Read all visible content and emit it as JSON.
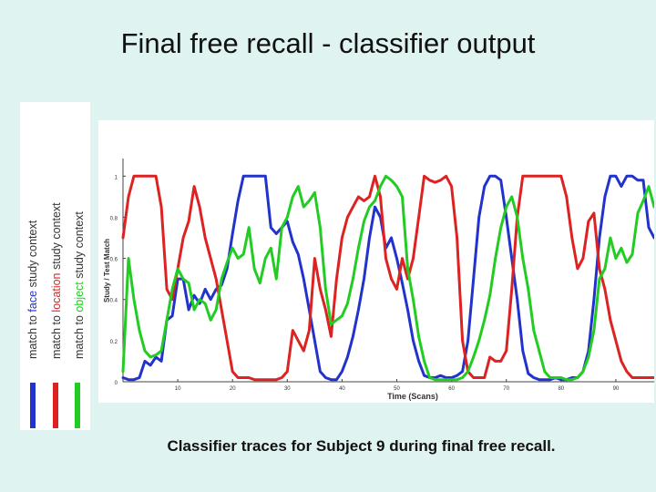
{
  "title": "Final free recall - classifier output",
  "caption": "Classifier traces for Subject 9 during final free recall.",
  "legend": [
    {
      "prefix": "match to ",
      "key": "face",
      "suffix": " study context",
      "color": "#2233cc"
    },
    {
      "prefix": "match to ",
      "key": "location",
      "suffix": " study context",
      "color": "#dd2222"
    },
    {
      "prefix": "match to ",
      "key": "object",
      "suffix": " study context",
      "color": "#22cc22"
    }
  ],
  "chart_data": {
    "type": "line",
    "xlabel": "Time (Scans)",
    "ylabel": "Study / Test Match",
    "xlim": [
      0,
      97
    ],
    "ylim": [
      0,
      1.05
    ],
    "xticks": [
      "10",
      "20",
      "30",
      "40",
      "50",
      "60",
      "70",
      "80",
      "90"
    ],
    "yticks": [
      "1",
      "0.8",
      "0.6",
      "0.4",
      "0.2",
      "0"
    ],
    "grid": false,
    "series": [
      {
        "name": "match to face study context",
        "color": "#2233cc",
        "x": [
          0,
          1,
          2,
          3,
          4,
          5,
          6,
          7,
          8,
          9,
          10,
          11,
          12,
          13,
          14,
          15,
          16,
          17,
          18,
          19,
          20,
          21,
          22,
          23,
          24,
          25,
          26,
          27,
          28,
          29,
          30,
          31,
          32,
          33,
          34,
          35,
          36,
          37,
          38,
          39,
          40,
          41,
          42,
          43,
          44,
          45,
          46,
          47,
          48,
          49,
          50,
          51,
          52,
          53,
          54,
          55,
          56,
          57,
          58,
          59,
          60,
          61,
          62,
          63,
          64,
          65,
          66,
          67,
          68,
          69,
          70,
          71,
          72,
          73,
          74,
          75,
          76,
          77,
          78,
          79,
          80,
          81,
          82,
          83,
          84,
          85,
          86,
          87,
          88,
          89,
          90,
          91,
          92,
          93,
          94,
          95,
          96,
          97
        ],
        "y": [
          0.02,
          0.01,
          0.01,
          0.02,
          0.1,
          0.08,
          0.12,
          0.1,
          0.3,
          0.32,
          0.5,
          0.5,
          0.35,
          0.42,
          0.38,
          0.45,
          0.4,
          0.45,
          0.47,
          0.55,
          0.72,
          0.88,
          1,
          1,
          1,
          1,
          1,
          0.75,
          0.72,
          0.75,
          0.78,
          0.68,
          0.62,
          0.5,
          0.35,
          0.2,
          0.05,
          0.02,
          0.01,
          0.01,
          0.05,
          0.12,
          0.22,
          0.35,
          0.5,
          0.7,
          0.85,
          0.8,
          0.65,
          0.7,
          0.6,
          0.48,
          0.35,
          0.2,
          0.1,
          0.03,
          0.02,
          0.02,
          0.03,
          0.02,
          0.02,
          0.03,
          0.05,
          0.2,
          0.5,
          0.8,
          0.95,
          1,
          1,
          0.98,
          0.8,
          0.6,
          0.4,
          0.15,
          0.04,
          0.02,
          0.01,
          0.01,
          0.01,
          0.02,
          0.01,
          0.01,
          0.02,
          0.02,
          0.05,
          0.15,
          0.4,
          0.7,
          0.9,
          1,
          1,
          0.95,
          1,
          1,
          0.98,
          0.98,
          0.75,
          0.7
        ]
      },
      {
        "name": "match to location study context",
        "color": "#dd2222",
        "x": [
          0,
          1,
          2,
          3,
          4,
          5,
          6,
          7,
          8,
          9,
          10,
          11,
          12,
          13,
          14,
          15,
          16,
          17,
          18,
          19,
          20,
          21,
          22,
          23,
          24,
          25,
          26,
          27,
          28,
          29,
          30,
          31,
          32,
          33,
          34,
          35,
          36,
          37,
          38,
          39,
          40,
          41,
          42,
          43,
          44,
          45,
          46,
          47,
          48,
          49,
          50,
          51,
          52,
          53,
          54,
          55,
          56,
          57,
          58,
          59,
          60,
          61,
          62,
          63,
          64,
          65,
          66,
          67,
          68,
          69,
          70,
          71,
          72,
          73,
          74,
          75,
          76,
          77,
          78,
          79,
          80,
          81,
          82,
          83,
          84,
          85,
          86,
          87,
          88,
          89,
          90,
          91,
          92,
          93,
          94,
          95,
          96,
          97
        ],
        "y": [
          0.7,
          0.9,
          1,
          1,
          1,
          1,
          1,
          0.85,
          0.45,
          0.4,
          0.55,
          0.7,
          0.78,
          0.95,
          0.85,
          0.7,
          0.6,
          0.5,
          0.35,
          0.2,
          0.05,
          0.02,
          0.02,
          0.02,
          0.01,
          0.01,
          0.01,
          0.01,
          0.01,
          0.02,
          0.05,
          0.25,
          0.2,
          0.15,
          0.25,
          0.6,
          0.45,
          0.35,
          0.22,
          0.5,
          0.7,
          0.8,
          0.85,
          0.9,
          0.88,
          0.9,
          1,
          0.9,
          0.6,
          0.5,
          0.45,
          0.6,
          0.5,
          0.6,
          0.8,
          1,
          0.98,
          0.97,
          0.98,
          1,
          0.95,
          0.7,
          0.2,
          0.05,
          0.02,
          0.02,
          0.02,
          0.12,
          0.1,
          0.1,
          0.15,
          0.45,
          0.8,
          1,
          1,
          1,
          1,
          1,
          1,
          1,
          1,
          0.9,
          0.7,
          0.55,
          0.6,
          0.78,
          0.82,
          0.55,
          0.45,
          0.3,
          0.2,
          0.1,
          0.05,
          0.02,
          0.02,
          0.02,
          0.02,
          0.02
        ]
      },
      {
        "name": "match to object study context",
        "color": "#22cc22",
        "x": [
          0,
          1,
          2,
          3,
          4,
          5,
          6,
          7,
          8,
          9,
          10,
          11,
          12,
          13,
          14,
          15,
          16,
          17,
          18,
          19,
          20,
          21,
          22,
          23,
          24,
          25,
          26,
          27,
          28,
          29,
          30,
          31,
          32,
          33,
          34,
          35,
          36,
          37,
          38,
          39,
          40,
          41,
          42,
          43,
          44,
          45,
          46,
          47,
          48,
          49,
          50,
          51,
          52,
          53,
          54,
          55,
          56,
          57,
          58,
          59,
          60,
          61,
          62,
          63,
          64,
          65,
          66,
          67,
          68,
          69,
          70,
          71,
          72,
          73,
          74,
          75,
          76,
          77,
          78,
          79,
          80,
          81,
          82,
          83,
          84,
          85,
          86,
          87,
          88,
          89,
          90,
          91,
          92,
          93,
          94,
          95,
          96,
          97
        ],
        "y": [
          0.05,
          0.6,
          0.4,
          0.25,
          0.15,
          0.12,
          0.13,
          0.15,
          0.3,
          0.45,
          0.55,
          0.5,
          0.48,
          0.35,
          0.4,
          0.38,
          0.3,
          0.35,
          0.5,
          0.58,
          0.65,
          0.6,
          0.62,
          0.75,
          0.55,
          0.48,
          0.6,
          0.65,
          0.5,
          0.75,
          0.8,
          0.9,
          0.95,
          0.85,
          0.88,
          0.92,
          0.75,
          0.45,
          0.28,
          0.3,
          0.32,
          0.38,
          0.5,
          0.65,
          0.78,
          0.85,
          0.88,
          0.95,
          1,
          0.98,
          0.95,
          0.9,
          0.55,
          0.4,
          0.22,
          0.1,
          0.02,
          0.01,
          0.01,
          0.01,
          0.01,
          0.01,
          0.02,
          0.05,
          0.12,
          0.2,
          0.3,
          0.42,
          0.6,
          0.75,
          0.85,
          0.9,
          0.8,
          0.6,
          0.45,
          0.25,
          0.15,
          0.05,
          0.02,
          0.02,
          0.02,
          0.01,
          0.01,
          0.02,
          0.05,
          0.12,
          0.25,
          0.5,
          0.55,
          0.7,
          0.6,
          0.65,
          0.58,
          0.62,
          0.82,
          0.88,
          0.95,
          0.85
        ]
      }
    ]
  }
}
